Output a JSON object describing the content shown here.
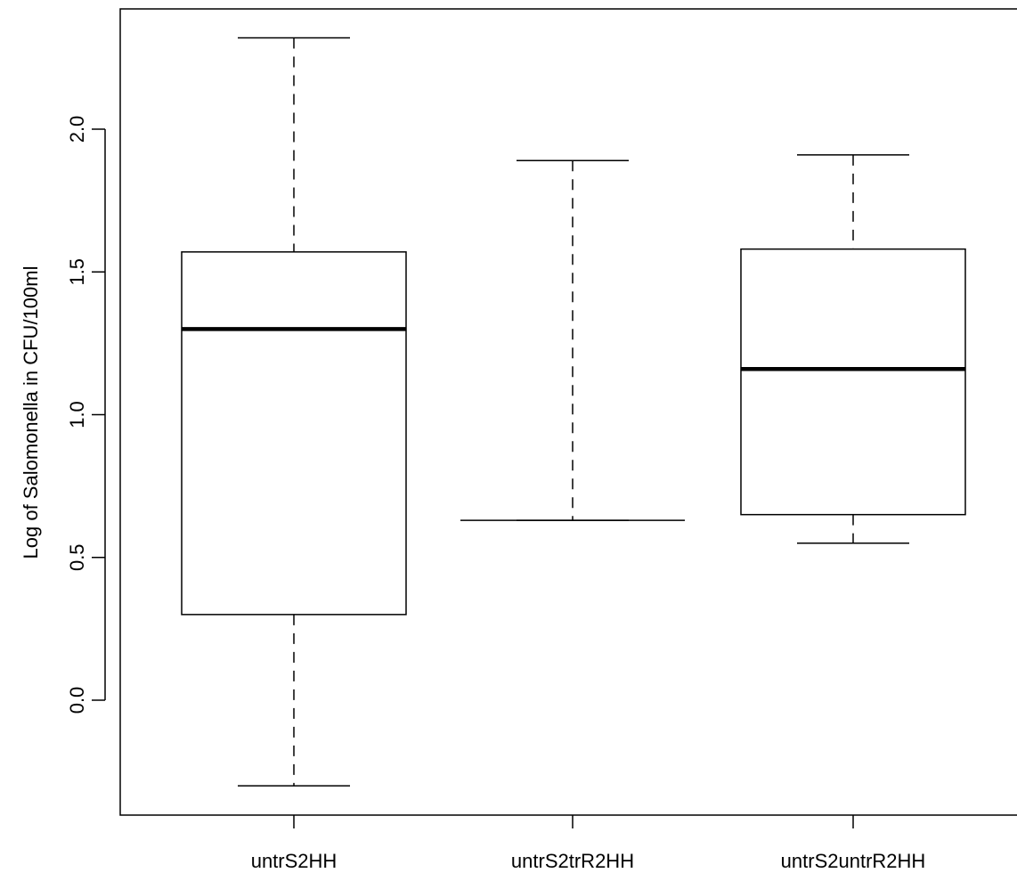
{
  "chart_data": {
    "type": "boxplot",
    "title": "",
    "xlabel": "",
    "ylabel": "Log of Salomonella in CFU/100ml",
    "ylim": [
      -0.4,
      2.42
    ],
    "yticks": [
      0.0,
      0.5,
      1.0,
      1.5,
      2.0
    ],
    "ytick_labels": [
      "0.0",
      "0.5",
      "1.0",
      "1.5",
      "2.0"
    ],
    "grid": false,
    "categories": [
      "untrS2HH",
      "untrS2trR2HH",
      "untrS2untrR2HH"
    ],
    "boxes": [
      {
        "name": "untrS2HH",
        "whisker_low": -0.3,
        "q1": 0.3,
        "median": 1.3,
        "q3": 1.57,
        "whisker_high": 2.32
      },
      {
        "name": "untrS2trR2HH",
        "whisker_low": 0.63,
        "q1": 0.63,
        "median": 0.63,
        "q3": 0.63,
        "whisker_high": 1.89
      },
      {
        "name": "untrS2untrR2HH",
        "whisker_low": 0.55,
        "q1": 0.65,
        "median": 1.16,
        "q3": 1.58,
        "whisker_high": 1.91
      }
    ]
  }
}
